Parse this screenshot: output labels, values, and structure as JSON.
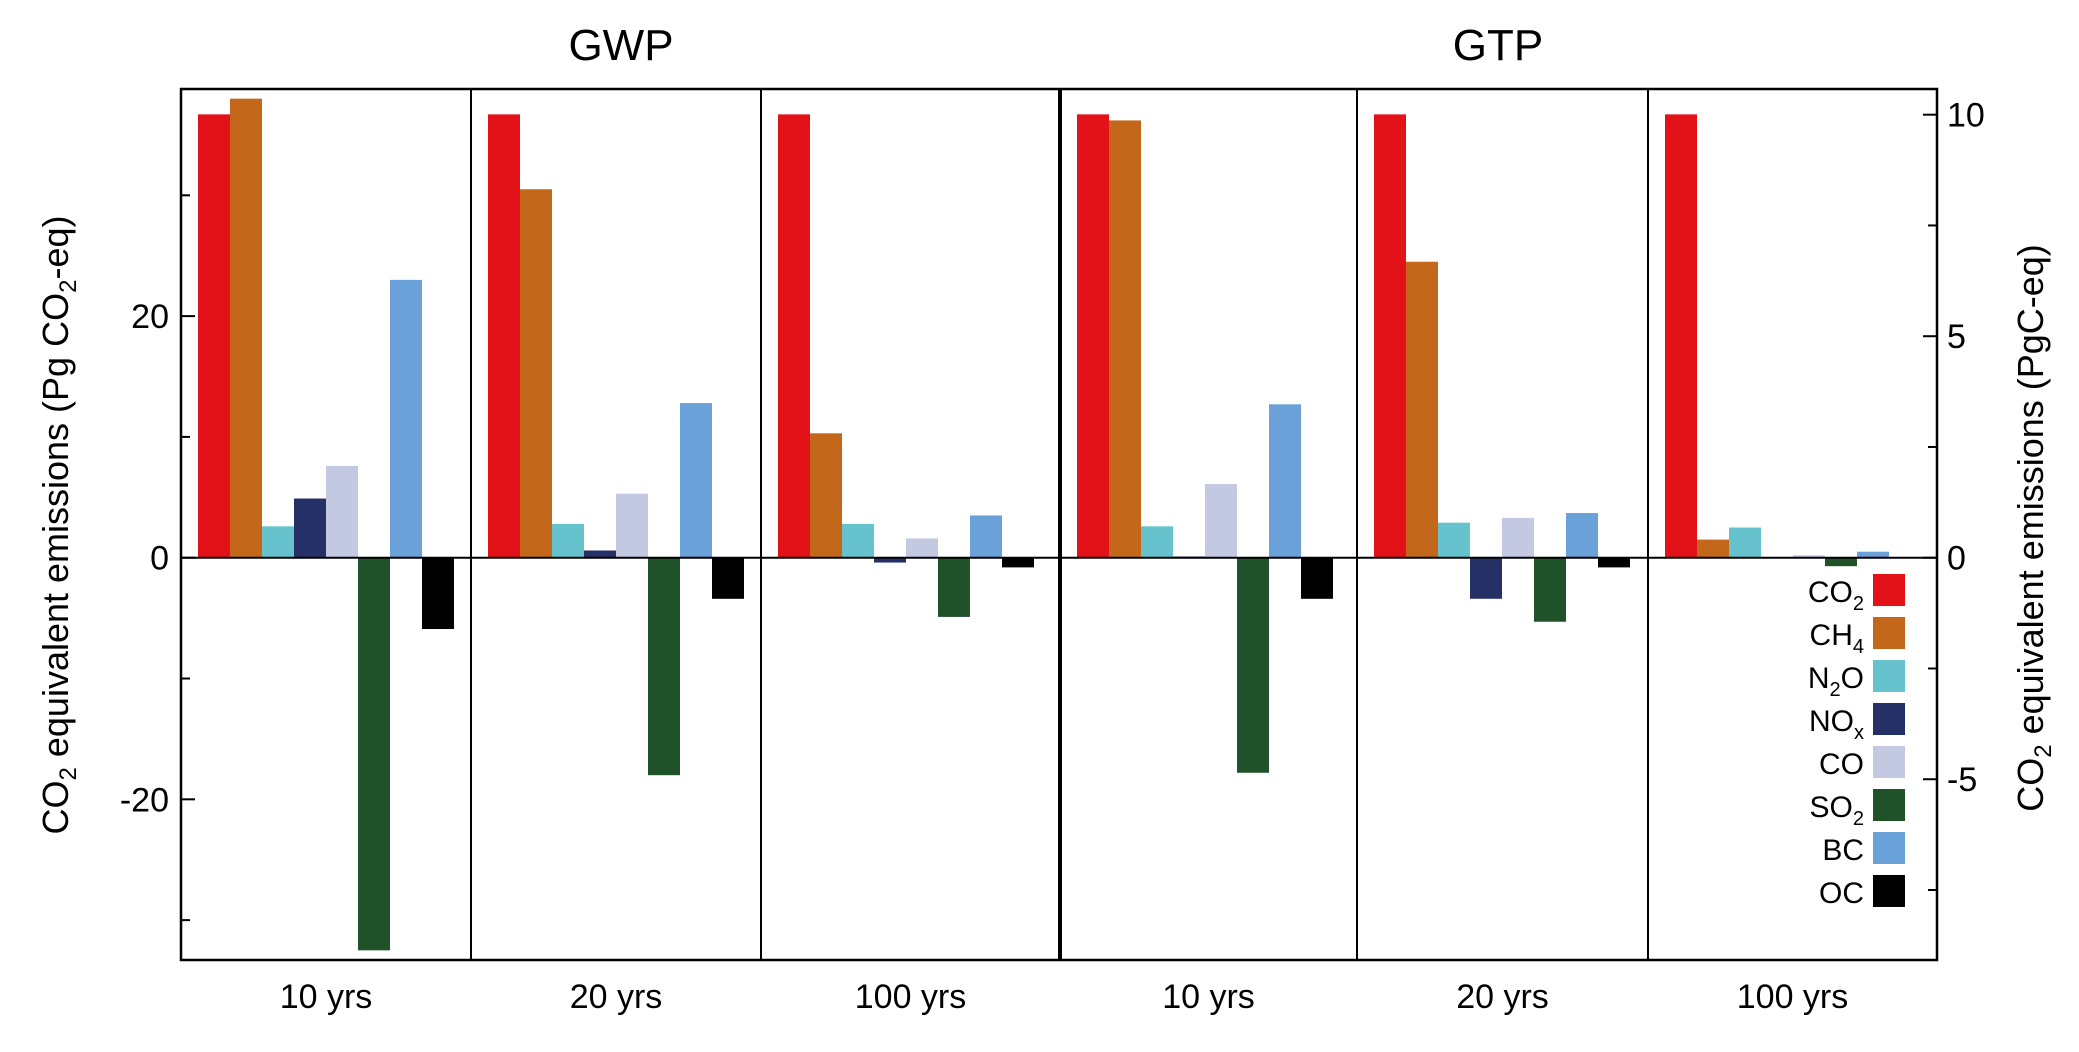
{
  "chart_data": {
    "type": "bar",
    "panel_groups": [
      {
        "title": "GWP",
        "panels": [
          "10 yrs",
          "20 yrs",
          "100 yrs"
        ]
      },
      {
        "title": "GTP",
        "panels": [
          "10 yrs",
          "20 yrs",
          "100 yrs"
        ]
      }
    ],
    "categories": [
      "CO2",
      "CH4",
      "N2O",
      "NOx",
      "CO",
      "SO2",
      "BC",
      "OC"
    ],
    "legend": [
      {
        "base": "CO",
        "sub": "2",
        "color": "#e31219"
      },
      {
        "base": "CH",
        "sub": "4",
        "color": "#c3681b"
      },
      {
        "base": "N",
        "sub": "2",
        "rest": "O",
        "color": "#66c3cd"
      },
      {
        "base": "NO",
        "sub": "x",
        "color": "#253067"
      },
      {
        "base": "CO",
        "sub": "",
        "color": "#c4c9e2"
      },
      {
        "base": "SO",
        "sub": "2",
        "color": "#20522a"
      },
      {
        "base": "BC",
        "sub": "",
        "color": "#6aa1d9"
      },
      {
        "base": "OC",
        "sub": "",
        "color": "#000000"
      }
    ],
    "series": [
      {
        "group": "GWP",
        "horizon": "10 yrs",
        "values": [
          36.7,
          38.0,
          2.6,
          4.9,
          7.6,
          -32.5,
          23.0,
          -5.9
        ]
      },
      {
        "group": "GWP",
        "horizon": "20 yrs",
        "values": [
          36.7,
          30.5,
          2.8,
          0.6,
          5.3,
          -18.0,
          12.8,
          -3.4
        ]
      },
      {
        "group": "GWP",
        "horizon": "100 yrs",
        "values": [
          36.7,
          10.3,
          2.8,
          -0.4,
          1.6,
          -4.9,
          3.5,
          -0.8
        ]
      },
      {
        "group": "GTP",
        "horizon": "10 yrs",
        "values": [
          36.7,
          36.2,
          2.6,
          0.1,
          6.1,
          -17.8,
          12.7,
          -3.4
        ]
      },
      {
        "group": "GTP",
        "horizon": "20 yrs",
        "values": [
          36.7,
          24.5,
          2.9,
          -3.4,
          3.3,
          -5.3,
          3.7,
          -0.8
        ]
      },
      {
        "group": "GTP",
        "horizon": "100 yrs",
        "values": [
          36.7,
          1.5,
          2.5,
          0.0,
          0.2,
          -0.7,
          0.5,
          0.0
        ]
      }
    ],
    "left_axis": {
      "label_parts": [
        "CO",
        "2",
        " equivalent emissions (Pg CO",
        "2",
        "-eq)"
      ],
      "ticks": [
        20,
        0,
        -20
      ],
      "tick_labels": [
        "20",
        "0",
        "-20"
      ],
      "ylim": [
        -33.3,
        38.8
      ]
    },
    "right_axis": {
      "label_parts": [
        "CO",
        "2",
        " equivalent emissions (PgC-eq)"
      ],
      "ticks": [
        10,
        5,
        0,
        -5
      ],
      "tick_labels": [
        "10",
        "5",
        "0",
        "-5"
      ],
      "ylim": [
        -9.08,
        10.58
      ]
    },
    "legend_position": "lower-right"
  }
}
